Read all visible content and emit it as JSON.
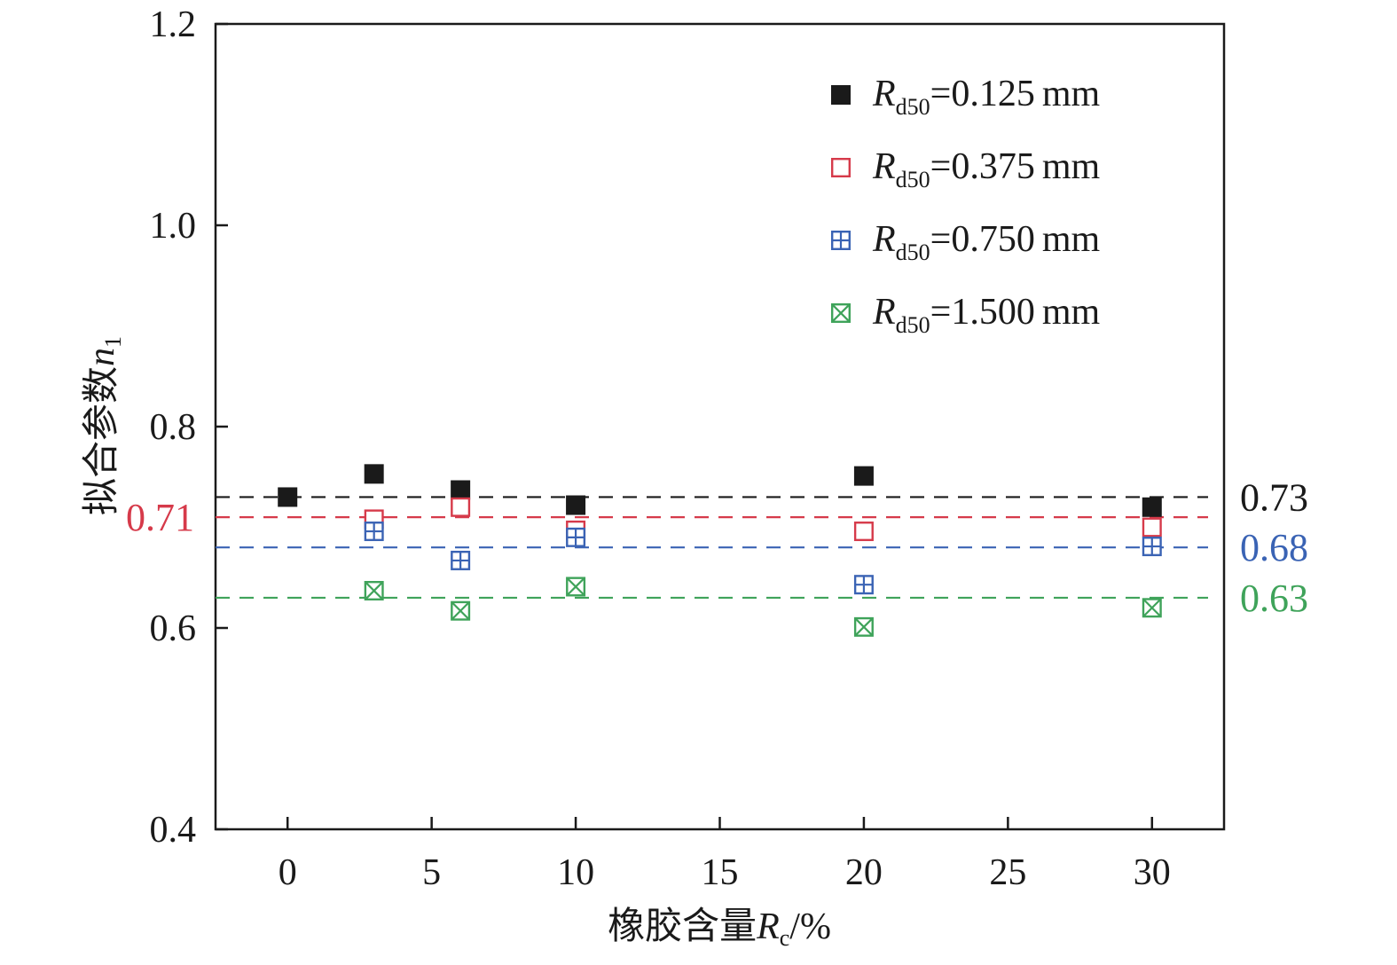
{
  "chart_data": {
    "type": "scatter",
    "xlabel": "橡胶含量Rc/%",
    "xlabel_parts": {
      "cjk": "橡胶含量",
      "var": "R",
      "sub": "c",
      "unit": "/%"
    },
    "ylabel": "拟合参数n1",
    "ylabel_parts": {
      "cjk": "拟合参数",
      "var": "n",
      "sub": "1"
    },
    "xlim": [
      -2.5,
      32.5
    ],
    "ylim": [
      0.4,
      1.2
    ],
    "xticks": [
      "0",
      "5",
      "10",
      "15",
      "20",
      "25",
      "30"
    ],
    "xtick_values": [
      0,
      5,
      10,
      15,
      20,
      25,
      30
    ],
    "yticks": [
      "0.4",
      "0.6",
      "0.8",
      "1.0",
      "1.2"
    ],
    "ytick_values": [
      0.4,
      0.6,
      0.8,
      1.0,
      1.2
    ],
    "legend_position": "top-right",
    "series": [
      {
        "name": "Rd50=0.125mm",
        "legend": {
          "var": "R",
          "sub": "d50",
          "value": "=0.125",
          "unit": "mm"
        },
        "marker": "filled-square",
        "color": "#1a1a1a",
        "x": [
          0,
          3,
          6,
          10,
          20,
          30
        ],
        "y": [
          0.73,
          0.753,
          0.737,
          0.722,
          0.751,
          0.72
        ]
      },
      {
        "name": "Rd50=0.375mm",
        "legend": {
          "var": "R",
          "sub": "d50",
          "value": "=0.375",
          "unit": "mm"
        },
        "marker": "open-square",
        "color": "#d63a4a",
        "x": [
          3,
          6,
          10,
          20,
          30
        ],
        "y": [
          0.708,
          0.72,
          0.697,
          0.696,
          0.7
        ]
      },
      {
        "name": "Rd50=0.750mm",
        "legend": {
          "var": "R",
          "sub": "d50",
          "value": "=0.750",
          "unit": "mm"
        },
        "marker": "square-plus",
        "color": "#3a63b4",
        "x": [
          3,
          6,
          10,
          20,
          30
        ],
        "y": [
          0.696,
          0.667,
          0.69,
          0.643,
          0.681
        ]
      },
      {
        "name": "Rd50=1.500mm",
        "legend": {
          "var": "R",
          "sub": "d50",
          "value": "=1.500",
          "unit": "mm"
        },
        "marker": "square-x",
        "color": "#3fa35a",
        "x": [
          3,
          6,
          10,
          20,
          30
        ],
        "y": [
          0.637,
          0.617,
          0.641,
          0.601,
          0.62
        ]
      }
    ],
    "reference_lines": [
      {
        "y": 0.73,
        "label": "0.73",
        "color": "#1a1a1a",
        "label_side": "right"
      },
      {
        "y": 0.71,
        "label": "0.71",
        "color": "#d63a4a",
        "label_side": "left"
      },
      {
        "y": 0.68,
        "label": "0.68",
        "color": "#3a63b4",
        "label_side": "right"
      },
      {
        "y": 0.63,
        "label": "0.63",
        "color": "#3fa35a",
        "label_side": "right"
      }
    ]
  }
}
